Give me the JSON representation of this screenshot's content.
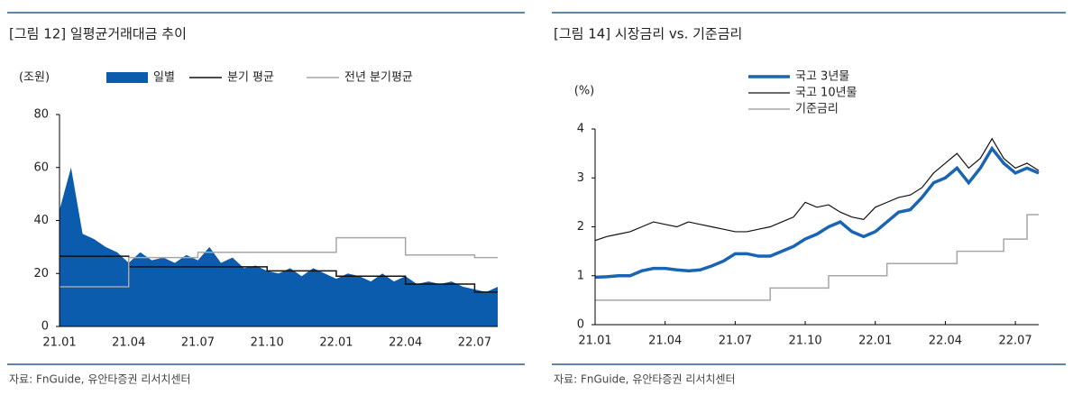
{
  "chart_data": [
    {
      "type": "line",
      "title": "[그림 12] 일평균거래대금 추이",
      "unit_label": "(조원)",
      "source": "자료: FnGuide, 유안타증권 리서치센터",
      "categories": [
        "21.01",
        null,
        null,
        null,
        null,
        null,
        "21.04",
        null,
        null,
        null,
        null,
        null,
        "21.07",
        null,
        null,
        null,
        null,
        null,
        "21.10",
        null,
        null,
        null,
        null,
        null,
        "22.01",
        null,
        null,
        null,
        null,
        null,
        "22.04",
        null,
        null,
        null,
        null,
        null,
        "22.07",
        null,
        null
      ],
      "ylim": [
        0,
        80
      ],
      "yticks": [
        0,
        20,
        40,
        60,
        80
      ],
      "grid": false,
      "legend": "top",
      "series": [
        {
          "name": "일별",
          "type": "area",
          "color": "#0b5cad",
          "values": [
            44,
            60,
            35,
            33,
            30,
            28,
            24,
            28,
            25,
            26,
            24,
            27,
            25,
            30,
            24,
            26,
            22,
            23,
            21,
            20,
            22,
            19,
            22,
            20,
            18,
            20,
            19,
            17,
            20,
            17,
            19,
            16,
            17,
            16,
            17,
            15,
            14,
            13,
            15
          ]
        },
        {
          "name": "분기 평균",
          "type": "line",
          "step": true,
          "color": "#111111",
          "values": [
            26.5,
            26.5,
            26.5,
            26.5,
            26.5,
            26.5,
            22.5,
            22.5,
            22.5,
            22.5,
            22.5,
            22.5,
            22.5,
            22.5,
            22.5,
            22.5,
            22.5,
            22.5,
            21,
            21,
            21,
            21,
            21,
            21,
            19,
            19,
            19,
            19,
            19,
            19,
            16,
            16,
            16,
            16,
            16,
            16,
            13,
            13,
            13
          ]
        },
        {
          "name": "전년 분기평균",
          "type": "line",
          "step": true,
          "color": "#a6a6a6",
          "values": [
            15,
            15,
            15,
            15,
            15,
            15,
            26,
            26,
            26,
            26,
            26,
            26,
            28,
            28,
            28,
            28,
            28,
            28,
            28,
            28,
            28,
            28,
            28,
            28,
            33.5,
            33.5,
            33.5,
            33.5,
            33.5,
            33.5,
            27,
            27,
            27,
            27,
            27,
            27,
            26,
            26,
            26
          ]
        }
      ]
    },
    {
      "type": "line",
      "title": "[그림 14] 시장금리 vs. 기준금리",
      "unit_label": "(%)",
      "source": "자료: FnGuide, 유안타증권 리서치센터",
      "categories": [
        "21.01",
        null,
        null,
        null,
        null,
        null,
        "21.04",
        null,
        null,
        null,
        null,
        null,
        "21.07",
        null,
        null,
        null,
        null,
        null,
        "21.10",
        null,
        null,
        null,
        null,
        null,
        "22.01",
        null,
        null,
        null,
        null,
        null,
        "22.04",
        null,
        null,
        null,
        null,
        null,
        "22.07",
        null,
        null
      ],
      "ylim": [
        0,
        4
      ],
      "yticks": [
        0,
        1,
        2,
        3,
        4
      ],
      "grid": false,
      "legend": "top",
      "series": [
        {
          "name": "국고 3년물",
          "type": "line",
          "width": 3.5,
          "color": "#1a64b4",
          "values": [
            0.97,
            0.98,
            1.0,
            1.0,
            1.1,
            1.15,
            1.15,
            1.12,
            1.1,
            1.12,
            1.2,
            1.3,
            1.45,
            1.45,
            1.4,
            1.4,
            1.5,
            1.6,
            1.75,
            1.85,
            2.0,
            2.1,
            1.9,
            1.8,
            1.9,
            2.1,
            2.3,
            2.35,
            2.6,
            2.9,
            3.0,
            3.2,
            2.9,
            3.2,
            3.6,
            3.3,
            3.1,
            3.2,
            3.1
          ]
        },
        {
          "name": "국고 10년물",
          "type": "line",
          "width": 1.2,
          "color": "#111111",
          "values": [
            1.72,
            1.8,
            1.85,
            1.9,
            2.0,
            2.1,
            2.05,
            2.0,
            2.1,
            2.05,
            2.0,
            1.95,
            1.9,
            1.9,
            1.95,
            2.0,
            2.1,
            2.2,
            2.5,
            2.4,
            2.45,
            2.3,
            2.2,
            2.15,
            2.4,
            2.5,
            2.6,
            2.65,
            2.8,
            3.1,
            3.3,
            3.5,
            3.2,
            3.4,
            3.8,
            3.4,
            3.2,
            3.3,
            3.15
          ]
        },
        {
          "name": "기준금리",
          "type": "line",
          "step": true,
          "width": 1.5,
          "color": "#a6a6a6",
          "values": [
            0.5,
            0.5,
            0.5,
            0.5,
            0.5,
            0.5,
            0.5,
            0.5,
            0.5,
            0.5,
            0.5,
            0.5,
            0.5,
            0.5,
            0.5,
            0.75,
            0.75,
            0.75,
            0.75,
            0.75,
            1.0,
            1.0,
            1.0,
            1.0,
            1.0,
            1.25,
            1.25,
            1.25,
            1.25,
            1.25,
            1.25,
            1.5,
            1.5,
            1.5,
            1.5,
            1.75,
            1.75,
            2.25,
            2.25
          ]
        }
      ]
    }
  ]
}
